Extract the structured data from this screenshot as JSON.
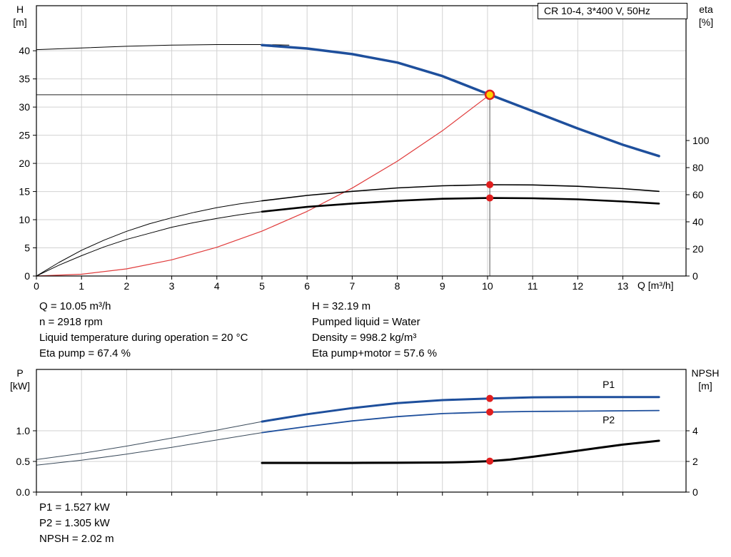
{
  "title_box": {
    "text": "CR 10-4, 3*400 V, 50Hz"
  },
  "info": {
    "col1": [
      "Q = 10.05 m³/h",
      "n = 2918 rpm",
      "Liquid temperature during operation = 20 °C",
      "Eta pump = 67.4 %"
    ],
    "col2": [
      "H = 32.19 m",
      "Pumped liquid = Water",
      "Density = 998.2 kg/m³",
      "Eta pump+motor = 57.6 %"
    ]
  },
  "footer": [
    "P1 = 1.527 kW",
    "P2 = 1.305 kW",
    "NPSH = 2.02 m"
  ],
  "colors": {
    "pump_blue": "#1e4f9c",
    "marker_red": "#e01f1f",
    "marker_yellow": "#ffd200",
    "grid": "#d2d2d2"
  },
  "duty_point": {
    "q_m3h": 10.05,
    "h_m": 32.19,
    "eta_pump_pct": 67.4,
    "eta_pump_motor_pct": 57.6,
    "p1_kw": 1.527,
    "p2_kw": 1.305,
    "npsh_m": 2.02
  },
  "chart_data": [
    {
      "type": "line",
      "name": "qh-efficiency-chart",
      "title": "CR 10-4, 3*400 V, 50Hz",
      "x_axis": {
        "label": "Q [m³/h]",
        "range": [
          0,
          14.4
        ],
        "ticks": [
          {
            "v": 0,
            "t": "0"
          },
          {
            "v": 1,
            "t": "1"
          },
          {
            "v": 2,
            "t": "2"
          },
          {
            "v": 3,
            "t": "3"
          },
          {
            "v": 4,
            "t": "4"
          },
          {
            "v": 5,
            "t": "5"
          },
          {
            "v": 6,
            "t": "6"
          },
          {
            "v": 7,
            "t": "7"
          },
          {
            "v": 8,
            "t": "8"
          },
          {
            "v": 9,
            "t": "9"
          },
          {
            "v": 10,
            "t": "10"
          },
          {
            "v": 11,
            "t": "11"
          },
          {
            "v": 12,
            "t": "12"
          },
          {
            "v": 13,
            "t": "13"
          }
        ]
      },
      "y_left": {
        "label": [
          "H",
          "[m]"
        ],
        "range": [
          0,
          48
        ],
        "ticks": [
          {
            "v": 0,
            "t": "0"
          },
          {
            "v": 5,
            "t": "5"
          },
          {
            "v": 10,
            "t": "10"
          },
          {
            "v": 15,
            "t": "15"
          },
          {
            "v": 20,
            "t": "20"
          },
          {
            "v": 25,
            "t": "25"
          },
          {
            "v": 30,
            "t": "30"
          },
          {
            "v": 35,
            "t": "35"
          },
          {
            "v": 40,
            "t": "40"
          }
        ]
      },
      "y_right": {
        "label": [
          "eta",
          "[%]"
        ],
        "range": [
          0,
          199.5
        ],
        "ticks": [
          {
            "v": 0,
            "t": "0"
          },
          {
            "v": 20,
            "t": "20"
          },
          {
            "v": 40,
            "t": "40"
          },
          {
            "v": 60,
            "t": "60"
          },
          {
            "v": 80,
            "t": "80"
          },
          {
            "v": 100,
            "t": "100"
          }
        ]
      },
      "grid": true,
      "series": [
        {
          "name": "pump-curve-low-flow",
          "axis": "left",
          "color": "#000000",
          "width": 1,
          "points": [
            [
              0,
              40.2
            ],
            [
              1,
              40.5
            ],
            [
              2,
              40.8
            ],
            [
              3,
              41.0
            ],
            [
              4,
              41.1
            ],
            [
              5,
              41.1
            ],
            [
              5.6,
              41.0
            ]
          ]
        },
        {
          "name": "pump-curve",
          "axis": "left",
          "color": "#1e4f9c",
          "width": 3.5,
          "points": [
            [
              5,
              41.0
            ],
            [
              6,
              40.4
            ],
            [
              7,
              39.4
            ],
            [
              8,
              37.9
            ],
            [
              9,
              35.5
            ],
            [
              10.05,
              32.19
            ],
            [
              11,
              29.3
            ],
            [
              12,
              26.2
            ],
            [
              13,
              23.3
            ],
            [
              13.8,
              21.3
            ]
          ]
        },
        {
          "name": "system-curve",
          "axis": "left",
          "color": "#e03b3b",
          "width": 1.2,
          "points": [
            [
              0,
              0
            ],
            [
              1,
              0.32
            ],
            [
              2,
              1.27
            ],
            [
              3,
              2.87
            ],
            [
              4,
              5.1
            ],
            [
              5,
              7.97
            ],
            [
              6,
              11.47
            ],
            [
              7,
              15.61
            ],
            [
              8,
              20.39
            ],
            [
              9,
              25.8
            ],
            [
              10.05,
              32.19
            ]
          ]
        },
        {
          "name": "eta-pump-low-flow",
          "axis": "right",
          "color": "#000000",
          "width": 1,
          "points": [
            [
              0,
              0
            ],
            [
              0.5,
              10
            ],
            [
              1,
              19
            ],
            [
              1.5,
              26.5
            ],
            [
              2,
              33
            ],
            [
              2.5,
              38.5
            ],
            [
              3,
              43
            ],
            [
              3.5,
              47
            ],
            [
              4,
              50.5
            ],
            [
              4.5,
              53.2
            ],
            [
              5,
              55.5
            ]
          ]
        },
        {
          "name": "eta-pump",
          "axis": "right",
          "color": "#000000",
          "width": 1.6,
          "points": [
            [
              5,
              55.5
            ],
            [
              6,
              59.5
            ],
            [
              7,
              62.5
            ],
            [
              8,
              65
            ],
            [
              9,
              66.6
            ],
            [
              10.05,
              67.4
            ],
            [
              11,
              67.2
            ],
            [
              12,
              66.2
            ],
            [
              13,
              64.5
            ],
            [
              13.8,
              62.5
            ]
          ]
        },
        {
          "name": "eta-pump-motor-low-flow",
          "axis": "right",
          "color": "#000000",
          "width": 1,
          "points": [
            [
              0,
              0
            ],
            [
              0.5,
              8
            ],
            [
              1,
              15
            ],
            [
              1.5,
              21.5
            ],
            [
              2,
              27
            ],
            [
              2.5,
              31.5
            ],
            [
              3,
              36
            ],
            [
              3.5,
              39.5
            ],
            [
              4,
              42.5
            ],
            [
              4.5,
              45.2
            ],
            [
              5,
              47.5
            ]
          ]
        },
        {
          "name": "eta-pump-motor",
          "axis": "right",
          "color": "#000000",
          "width": 2.6,
          "points": [
            [
              5,
              47.5
            ],
            [
              6,
              51
            ],
            [
              7,
              53.5
            ],
            [
              8,
              55.5
            ],
            [
              9,
              57
            ],
            [
              10.05,
              57.6
            ],
            [
              11,
              57.4
            ],
            [
              12,
              56.6
            ],
            [
              13,
              55
            ],
            [
              13.8,
              53.5
            ]
          ]
        }
      ],
      "duty_lines": [
        {
          "name": "duty-head-line",
          "axis": "left",
          "from": [
            0,
            32.19
          ],
          "to": [
            10.05,
            32.19
          ],
          "color": "#222222",
          "width": 1
        },
        {
          "name": "duty-flow-line",
          "axis": "left",
          "from": [
            10.05,
            0
          ],
          "to": [
            10.05,
            32.19
          ],
          "color": "#555555",
          "width": 1
        }
      ],
      "markers": [
        {
          "name": "duty-point",
          "x": 10.05,
          "y": 32.19,
          "axis": "left",
          "r": 6,
          "fill": "#ffd200",
          "stroke": "#e01f1f",
          "stroke_width": 2.5
        },
        {
          "name": "eta-pump-point",
          "x": 10.05,
          "y": 67.4,
          "axis": "right",
          "r": 4.5,
          "fill": "#e01f1f"
        },
        {
          "name": "eta-pump-motor-point",
          "x": 10.05,
          "y": 57.6,
          "axis": "right",
          "r": 4.5,
          "fill": "#e01f1f"
        }
      ],
      "annotations": []
    },
    {
      "type": "line",
      "name": "power-npsh-chart",
      "title": "",
      "x_axis": {
        "label": "",
        "range": [
          0,
          14.4
        ],
        "ticks": [
          {
            "v": 0,
            "t": ""
          },
          {
            "v": 1,
            "t": ""
          },
          {
            "v": 2,
            "t": ""
          },
          {
            "v": 3,
            "t": ""
          },
          {
            "v": 4,
            "t": ""
          },
          {
            "v": 5,
            "t": ""
          },
          {
            "v": 6,
            "t": ""
          },
          {
            "v": 7,
            "t": ""
          },
          {
            "v": 8,
            "t": ""
          },
          {
            "v": 9,
            "t": ""
          },
          {
            "v": 10,
            "t": ""
          },
          {
            "v": 11,
            "t": ""
          },
          {
            "v": 12,
            "t": ""
          },
          {
            "v": 13,
            "t": ""
          }
        ]
      },
      "y_left": {
        "label": [
          "P",
          "[kW]"
        ],
        "range": [
          0,
          2.0
        ],
        "ticks": [
          {
            "v": 0,
            "t": "0.0"
          },
          {
            "v": 0.5,
            "t": "0.5"
          },
          {
            "v": 1,
            "t": "1.0"
          }
        ]
      },
      "y_right": {
        "label": [
          "NPSH",
          "[m]"
        ],
        "range": [
          0,
          8
        ],
        "ticks": [
          {
            "v": 0,
            "t": "0"
          },
          {
            "v": 2,
            "t": "2"
          },
          {
            "v": 4,
            "t": "4"
          }
        ]
      },
      "grid": true,
      "series": [
        {
          "name": "p1-low-flow",
          "axis": "left",
          "color": "#3a4a5a",
          "width": 1,
          "points": [
            [
              0,
              0.53
            ],
            [
              1,
              0.63
            ],
            [
              2,
              0.75
            ],
            [
              3,
              0.88
            ],
            [
              4,
              1.01
            ],
            [
              5,
              1.15
            ]
          ]
        },
        {
          "name": "p1-curve",
          "axis": "left",
          "color": "#1e4f9c",
          "width": 3,
          "points": [
            [
              5,
              1.15
            ],
            [
              6,
              1.27
            ],
            [
              7,
              1.37
            ],
            [
              8,
              1.45
            ],
            [
              9,
              1.5
            ],
            [
              10.05,
              1.527
            ],
            [
              11,
              1.545
            ],
            [
              12,
              1.55
            ],
            [
              13,
              1.55
            ],
            [
              13.8,
              1.55
            ]
          ]
        },
        {
          "name": "p2-low-flow",
          "axis": "left",
          "color": "#3a4a5a",
          "width": 1,
          "points": [
            [
              0,
              0.44
            ],
            [
              1,
              0.52
            ],
            [
              2,
              0.62
            ],
            [
              3,
              0.73
            ],
            [
              4,
              0.85
            ],
            [
              5,
              0.97
            ]
          ]
        },
        {
          "name": "p2-curve",
          "axis": "left",
          "color": "#1e4f9c",
          "width": 1.8,
          "points": [
            [
              5,
              0.97
            ],
            [
              6,
              1.07
            ],
            [
              7,
              1.16
            ],
            [
              8,
              1.23
            ],
            [
              9,
              1.28
            ],
            [
              10.05,
              1.305
            ],
            [
              11,
              1.315
            ],
            [
              12,
              1.32
            ],
            [
              13,
              1.325
            ],
            [
              13.8,
              1.33
            ]
          ]
        },
        {
          "name": "npsh-curve",
          "axis": "right",
          "color": "#000000",
          "width": 3,
          "points": [
            [
              5,
              1.9
            ],
            [
              6,
              1.9
            ],
            [
              7,
              1.9
            ],
            [
              8,
              1.91
            ],
            [
              9,
              1.93
            ],
            [
              9.5,
              1.96
            ],
            [
              10.05,
              2.02
            ],
            [
              10.5,
              2.12
            ],
            [
              11,
              2.3
            ],
            [
              11.5,
              2.5
            ],
            [
              12,
              2.7
            ],
            [
              12.5,
              2.9
            ],
            [
              13,
              3.1
            ],
            [
              13.8,
              3.35
            ]
          ]
        }
      ],
      "duty_lines": [],
      "markers": [
        {
          "name": "p1-point",
          "x": 10.05,
          "y": 1.527,
          "axis": "left",
          "r": 4.5,
          "fill": "#e01f1f"
        },
        {
          "name": "p2-point",
          "x": 10.05,
          "y": 1.305,
          "axis": "left",
          "r": 4.5,
          "fill": "#e01f1f"
        },
        {
          "name": "npsh-point",
          "x": 10.05,
          "y": 2.02,
          "axis": "right",
          "r": 4.5,
          "fill": "#e01f1f"
        }
      ],
      "annotations": [
        {
          "name": "p1-label",
          "text": "P1",
          "x": 12.55,
          "y": 1.7,
          "axis": "left",
          "color": "#1e4f9c"
        },
        {
          "name": "p2-label",
          "text": "P2",
          "x": 12.55,
          "y": 1.12,
          "axis": "left",
          "color": "#1e4f9c"
        }
      ]
    }
  ]
}
